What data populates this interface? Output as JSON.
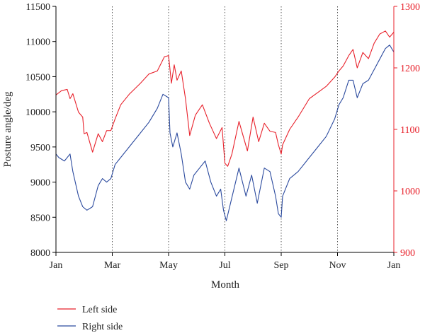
{
  "chart_data": {
    "type": "line",
    "title": "",
    "xlabel": "Month",
    "ylabel_left": "Posture angle/deg",
    "ylabel_right": "",
    "x_ticks": [
      "Jan",
      "Mar",
      "May",
      "Jul",
      "Sep",
      "Nov",
      "Jan"
    ],
    "x_range": [
      0,
      12
    ],
    "x_unit": "months",
    "vertical_dotted_lines_at": [
      2,
      4,
      6,
      8,
      10
    ],
    "y_left": {
      "range": [
        8000,
        11500
      ],
      "ticks": [
        8000,
        8500,
        9000,
        9500,
        10000,
        10500,
        11000,
        11500
      ]
    },
    "y_right": {
      "range": [
        900,
        1300
      ],
      "ticks": [
        900,
        1000,
        1100,
        1200,
        1300
      ],
      "color": "#e8212b"
    },
    "grid": false,
    "legend_position": "bottom-left",
    "series": [
      {
        "name": "Left side",
        "color": "#e8212b",
        "axis": "right",
        "x": [
          0,
          0.2,
          0.4,
          0.5,
          0.6,
          0.8,
          0.95,
          1.0,
          1.1,
          1.3,
          1.5,
          1.65,
          1.8,
          1.95,
          2.1,
          2.3,
          2.6,
          3.0,
          3.3,
          3.6,
          3.85,
          4.0,
          4.1,
          4.2,
          4.3,
          4.45,
          4.6,
          4.75,
          4.95,
          5.2,
          5.45,
          5.7,
          5.9,
          6.0,
          6.1,
          6.25,
          6.5,
          6.8,
          7.0,
          7.2,
          7.4,
          7.6,
          7.8,
          7.9,
          8.0,
          8.05,
          8.3,
          8.6,
          9.0,
          9.3,
          9.6,
          9.9,
          10.05,
          10.2,
          10.4,
          10.55,
          10.7,
          10.9,
          11.1,
          11.3,
          11.5,
          11.7,
          11.85,
          12.0
        ],
        "y": [
          1156,
          1163,
          1165,
          1150,
          1158,
          1128,
          1120,
          1093,
          1095,
          1063,
          1093,
          1080,
          1098,
          1098,
          1117,
          1140,
          1157,
          1175,
          1190,
          1195,
          1218,
          1220,
          1175,
          1205,
          1180,
          1195,
          1150,
          1090,
          1123,
          1140,
          1110,
          1085,
          1103,
          1045,
          1040,
          1060,
          1113,
          1065,
          1120,
          1080,
          1110,
          1097,
          1095,
          1075,
          1060,
          1075,
          1100,
          1120,
          1150,
          1160,
          1170,
          1185,
          1195,
          1203,
          1220,
          1230,
          1200,
          1225,
          1215,
          1240,
          1255,
          1260,
          1250,
          1258
        ]
      },
      {
        "name": "Right side",
        "color": "#2b4a9e",
        "axis": "left",
        "x": [
          0,
          0.1,
          0.3,
          0.5,
          0.6,
          0.8,
          0.95,
          1.1,
          1.3,
          1.5,
          1.65,
          1.8,
          1.95,
          2.1,
          2.3,
          2.6,
          3.0,
          3.3,
          3.6,
          3.8,
          4.0,
          4.05,
          4.15,
          4.3,
          4.45,
          4.6,
          4.75,
          4.9,
          5.1,
          5.3,
          5.5,
          5.7,
          5.85,
          5.95,
          6.05,
          6.2,
          6.5,
          6.75,
          6.95,
          7.15,
          7.4,
          7.6,
          7.8,
          7.9,
          8.0,
          8.05,
          8.3,
          8.6,
          9.0,
          9.3,
          9.6,
          9.9,
          10.05,
          10.2,
          10.4,
          10.55,
          10.7,
          10.9,
          11.1,
          11.3,
          11.5,
          11.7,
          11.85,
          12.0
        ],
        "y": [
          9400,
          9350,
          9300,
          9400,
          9150,
          8800,
          8650,
          8600,
          8650,
          8950,
          9050,
          9000,
          9050,
          9250,
          9350,
          9500,
          9700,
          9850,
          10050,
          10250,
          10200,
          9700,
          9500,
          9700,
          9400,
          9000,
          8900,
          9100,
          9200,
          9300,
          9000,
          8800,
          8900,
          8600,
          8450,
          8700,
          9200,
          8800,
          9100,
          8700,
          9200,
          9150,
          8800,
          8550,
          8500,
          8800,
          9050,
          9150,
          9350,
          9500,
          9650,
          9900,
          10100,
          10200,
          10450,
          10450,
          10200,
          10400,
          10450,
          10600,
          10750,
          10900,
          10950,
          10850
        ]
      }
    ]
  }
}
